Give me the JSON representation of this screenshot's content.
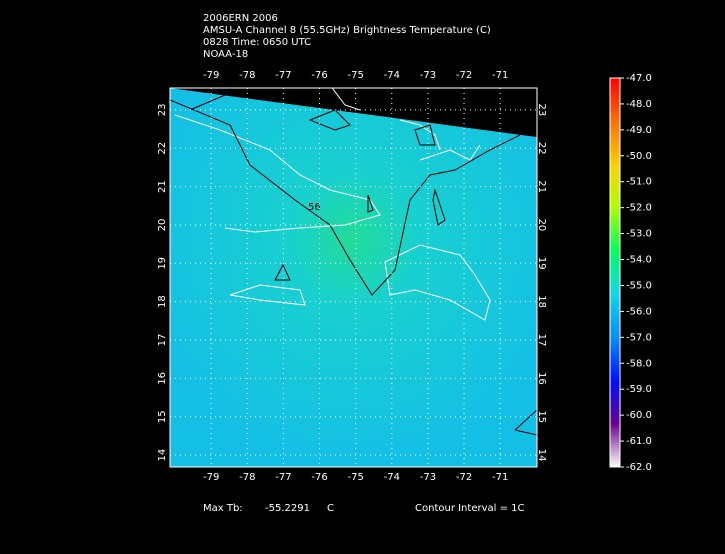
{
  "header": {
    "lines": [
      "2006ERN 2006",
      "AMSU-A Channel 8 (55.5GHz) Brightness Temperature (C)",
      "0828 Time: 0650 UTC",
      "NOAA-18"
    ]
  },
  "map": {
    "lon_ticks": [
      -79,
      -78,
      -77,
      -76,
      -75,
      -74,
      -73,
      -72,
      -71
    ],
    "lat_ticks": [
      14,
      15,
      16,
      17,
      18,
      19,
      20,
      21,
      22,
      23
    ],
    "lonlim": [
      -80.14,
      -69.98
    ],
    "latlim": [
      13.69,
      23.57
    ],
    "contour_label": "56"
  },
  "colorbar": {
    "lim": [
      -62,
      -47
    ],
    "colors": [
      "#ffffff",
      "#6a0090",
      "#0010ff",
      "#0090ff",
      "#10d8e8",
      "#00ff60",
      "#b0ff00",
      "#ffd000",
      "#ff7000",
      "#ff0000"
    ],
    "ticks": [
      {
        "value": -47,
        "label": "-47.0"
      },
      {
        "value": -48,
        "label": "-48.0"
      },
      {
        "value": -49,
        "label": "-49.0"
      },
      {
        "value": -50,
        "label": "-50.0"
      },
      {
        "value": -51,
        "label": "-51.0"
      },
      {
        "value": -52,
        "label": "-52.0"
      },
      {
        "value": -53,
        "label": "-53.0"
      },
      {
        "value": -54,
        "label": "-54.0"
      },
      {
        "value": -55,
        "label": "-55.0"
      },
      {
        "value": -56,
        "label": "-56.0"
      },
      {
        "value": -57,
        "label": "-57.0"
      },
      {
        "value": -58,
        "label": "-58.0"
      },
      {
        "value": -59,
        "label": "-59.0"
      },
      {
        "value": -60,
        "label": "-60.0"
      },
      {
        "value": -61,
        "label": "-61.0"
      },
      {
        "value": -62,
        "label": "-62.0"
      }
    ]
  },
  "footer": {
    "max_label": "Max Tb:",
    "max_value": "-55.2291",
    "max_unit": "C",
    "contour_interval": "Contour Interval = 1C"
  }
}
